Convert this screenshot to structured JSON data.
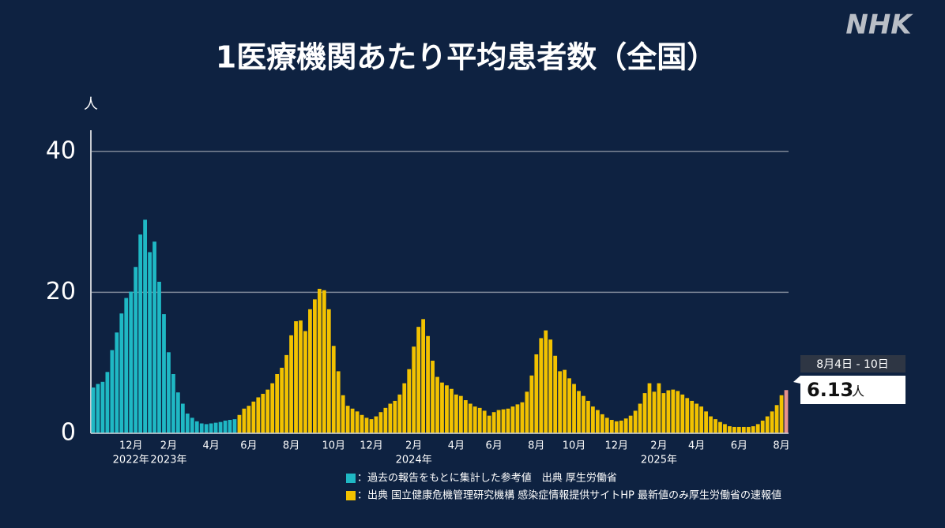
{
  "chart_data": {
    "type": "bar",
    "title": "1医療機関あたり平均患者数（全国）",
    "logo": "NHK",
    "y_label": "人",
    "ylim": [
      0,
      43
    ],
    "yticks": [
      0,
      20,
      40
    ],
    "grid": true,
    "categories": [
      null,
      null,
      null,
      null,
      null,
      null,
      null,
      null,
      "12月",
      null,
      null,
      null,
      null,
      null,
      null,
      null,
      "2月",
      null,
      null,
      null,
      null,
      null,
      null,
      null,
      null,
      "4月",
      null,
      null,
      null,
      null,
      null,
      null,
      null,
      "6月",
      null,
      null,
      null,
      null,
      null,
      null,
      null,
      null,
      "8月",
      null,
      null,
      null,
      null,
      null,
      null,
      null,
      null,
      "10月",
      null,
      null,
      null,
      null,
      null,
      null,
      null,
      "12月",
      null,
      null,
      null,
      null,
      null,
      null,
      null,
      null,
      "2月",
      null,
      null,
      null,
      null,
      null,
      null,
      null,
      null,
      "4月",
      null,
      null,
      null,
      null,
      null,
      null,
      null,
      "6月",
      null,
      null,
      null,
      null,
      null,
      null,
      null,
      null,
      "8月",
      null,
      null,
      null,
      null,
      null,
      null,
      null,
      "10月",
      null,
      null,
      null,
      null,
      null,
      null,
      null,
      null,
      "12月",
      null,
      null,
      null,
      null,
      null,
      null,
      null,
      null,
      "2月",
      null,
      null,
      null,
      null,
      null,
      null,
      null,
      "4月",
      null,
      null,
      null,
      null,
      null,
      null,
      null,
      null,
      "6月",
      null,
      null,
      null,
      null,
      null,
      null,
      null,
      null,
      "8月",
      null
    ],
    "years": [
      null,
      null,
      null,
      null,
      null,
      null,
      null,
      null,
      "2022年",
      null,
      null,
      null,
      null,
      null,
      null,
      null,
      "2023年",
      null,
      null,
      null,
      null,
      null,
      null,
      null,
      null,
      null,
      null,
      null,
      null,
      null,
      null,
      null,
      null,
      null,
      null,
      null,
      null,
      null,
      null,
      null,
      null,
      null,
      null,
      null,
      null,
      null,
      null,
      null,
      null,
      null,
      null,
      null,
      null,
      null,
      null,
      null,
      null,
      null,
      null,
      null,
      null,
      null,
      null,
      null,
      null,
      null,
      null,
      null,
      "2024年",
      null,
      null,
      null,
      null,
      null,
      null,
      null,
      null,
      null,
      null,
      null,
      null,
      null,
      null,
      null,
      null,
      null,
      null,
      null,
      null,
      null,
      null,
      null,
      null,
      null,
      null,
      null,
      null,
      null,
      null,
      null,
      null,
      null,
      null,
      null,
      null,
      null,
      null,
      null,
      null,
      null,
      null,
      null,
      null,
      null,
      null,
      null,
      null,
      null,
      null,
      null,
      "2025年",
      null,
      null,
      null,
      null,
      null,
      null,
      null,
      null,
      null,
      null,
      null,
      null,
      null,
      null,
      null,
      null,
      null,
      null,
      null,
      null,
      null,
      null,
      null,
      null,
      null,
      null,
      null
    ],
    "series": [
      {
        "name": "：過去の報告をもとに集計した参考値　出典 厚生労働省",
        "color": "#1fb8c4",
        "values": [
          6.5,
          7,
          7.3,
          8.7,
          11.8,
          14.3,
          17,
          19.2,
          20.1,
          23.6,
          28.2,
          30.3,
          25.7,
          27.2,
          21.5,
          16.9,
          11.5,
          8.4,
          5.8,
          4.2,
          2.8,
          2.2,
          1.7,
          1.4,
          1.3,
          1.4,
          1.5,
          1.6,
          1.8,
          1.9,
          2.0,
          null,
          null,
          null,
          null,
          null,
          null,
          null,
          null,
          null,
          null,
          null,
          null,
          null,
          null,
          null,
          null,
          null,
          null,
          null,
          null,
          null,
          null,
          null,
          null,
          null,
          null,
          null,
          null,
          null,
          null,
          null,
          null,
          null,
          null,
          null,
          null,
          null,
          null,
          null,
          null,
          null,
          null,
          null,
          null,
          null,
          null,
          null,
          null,
          null,
          null,
          null,
          null,
          null,
          null,
          null,
          null,
          null,
          null,
          null,
          null,
          null,
          null,
          null,
          null,
          null,
          null,
          null,
          null,
          null,
          null,
          null,
          null,
          null,
          null,
          null,
          null,
          null,
          null,
          null,
          null,
          null,
          null,
          null,
          null,
          null,
          null,
          null,
          null,
          null,
          null,
          null,
          null,
          null,
          null,
          null,
          null,
          null,
          null,
          null,
          null,
          null,
          null,
          null,
          null,
          null,
          null,
          null,
          null,
          null,
          null,
          null,
          null,
          null,
          null,
          null,
          null,
          null
        ]
      },
      {
        "name": "：出典 国立健康危機管理研究機構 感染症情報提供サイトHP 最新値のみ厚生労働省の速報値",
        "color": "#f2c200",
        "last_color": "#e8918c",
        "values": [
          null,
          null,
          null,
          null,
          null,
          null,
          null,
          null,
          null,
          null,
          null,
          null,
          null,
          null,
          null,
          null,
          null,
          null,
          null,
          null,
          null,
          null,
          null,
          null,
          null,
          null,
          null,
          null,
          null,
          null,
          null,
          2.6,
          3.5,
          3.9,
          4.5,
          5.1,
          5.6,
          6.2,
          7.1,
          8.4,
          9.3,
          11.1,
          13.9,
          15.9,
          16.0,
          14.5,
          17.6,
          19.0,
          20.5,
          20.3,
          17.6,
          12.4,
          8.8,
          5.4,
          3.9,
          3.5,
          3.1,
          2.6,
          2.2,
          2.0,
          2.4,
          3.0,
          3.6,
          4.2,
          4.6,
          5.5,
          7.1,
          9.1,
          12.3,
          15.1,
          16.2,
          13.8,
          10.3,
          8.0,
          7.2,
          6.8,
          6.3,
          5.5,
          5.3,
          4.7,
          4.2,
          3.8,
          3.6,
          3.2,
          2.5,
          3.0,
          3.3,
          3.4,
          3.5,
          3.8,
          4.1,
          4.4,
          5.9,
          8.2,
          11.2,
          13.5,
          14.6,
          13.3,
          11.0,
          8.8,
          9.0,
          7.8,
          7.0,
          6.0,
          5.3,
          4.6,
          3.8,
          3.3,
          2.7,
          2.2,
          1.9,
          1.7,
          1.8,
          2.1,
          2.5,
          3.2,
          4.2,
          5.7,
          7.1,
          5.9,
          7.1,
          5.7,
          6.1,
          6.2,
          6.0,
          5.5,
          5.0,
          4.6,
          4.2,
          3.8,
          3.1,
          2.4,
          2.0,
          1.6,
          1.3,
          1.0,
          0.9,
          0.9,
          0.9,
          0.9,
          1.0,
          1.3,
          1.8,
          2.4,
          3.1,
          4.0,
          5.4,
          6.13
        ]
      }
    ],
    "callout": {
      "period": "8月4日 - 10日",
      "unit": "人"
    }
  }
}
